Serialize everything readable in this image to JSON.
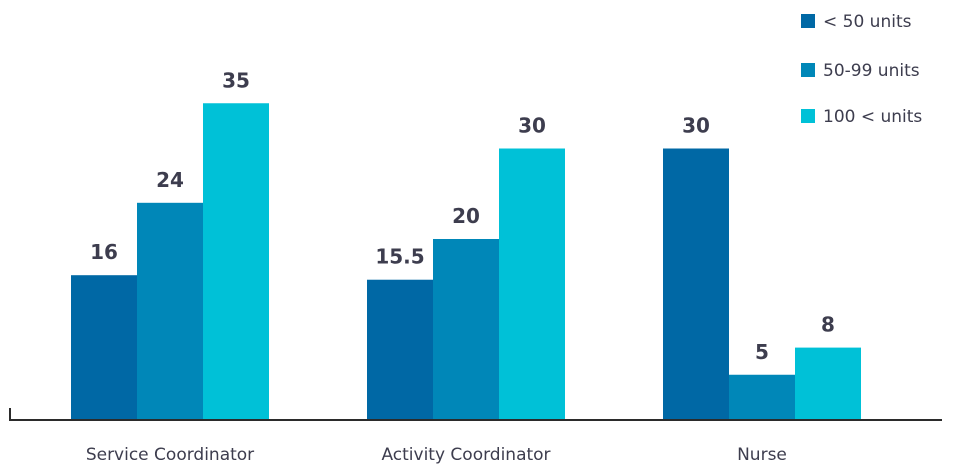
{
  "chart_data": {
    "type": "bar",
    "categories": [
      "Service Coordinator",
      "Activity Coordinator",
      "Nurse"
    ],
    "series": [
      {
        "name": "< 50 units",
        "values": [
          16,
          15.5,
          30
        ],
        "color": "#0068a5"
      },
      {
        "name": "50-99 units",
        "values": [
          24,
          20,
          5
        ],
        "color": "#0087b8"
      },
      {
        "name": "100 < units",
        "values": [
          35,
          30,
          8
        ],
        "color": "#00c1d7"
      }
    ],
    "data_labels": [
      [
        "16",
        "24",
        "35"
      ],
      [
        "15.5",
        "20",
        "30"
      ],
      [
        "30",
        "5",
        "8"
      ]
    ],
    "ylim": [
      0,
      40
    ],
    "grid": false,
    "legend": "top-right"
  }
}
